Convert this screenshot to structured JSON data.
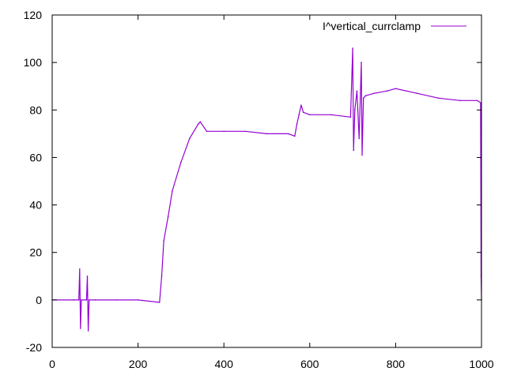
{
  "chart_data": {
    "type": "line",
    "title": "",
    "xlabel": "",
    "ylabel": "",
    "xlim": [
      0,
      1000
    ],
    "ylim": [
      -20,
      120
    ],
    "xticks": [
      0,
      200,
      400,
      600,
      800,
      1000
    ],
    "yticks": [
      -20,
      0,
      20,
      40,
      60,
      80,
      100,
      120
    ],
    "grid": false,
    "legend_position": "top-right",
    "series": [
      {
        "name": "I^vertical_currclamp",
        "color": "#9400d3",
        "x": [
          0,
          50,
          62,
          64,
          66,
          68,
          80,
          82,
          84,
          86,
          100,
          150,
          200,
          250,
          255,
          260,
          270,
          280,
          300,
          320,
          340,
          345,
          360,
          400,
          450,
          500,
          550,
          565,
          570,
          575,
          580,
          585,
          600,
          650,
          695,
          700,
          702,
          705,
          710,
          715,
          720,
          722,
          725,
          730,
          750,
          780,
          800,
          850,
          900,
          950,
          990,
          998,
          999,
          1000
        ],
        "y": [
          0,
          0,
          0,
          13,
          -12,
          0,
          0,
          10,
          -13,
          0,
          0,
          0,
          0,
          -1,
          10,
          25,
          35,
          46,
          58,
          68,
          74,
          75,
          71,
          71,
          71,
          70,
          70,
          69,
          74,
          78,
          82,
          79,
          78,
          78,
          77,
          106,
          63,
          80,
          88,
          68,
          100,
          61,
          85,
          86,
          87,
          88,
          89,
          87,
          85,
          84,
          84,
          83,
          10,
          0
        ]
      }
    ]
  }
}
